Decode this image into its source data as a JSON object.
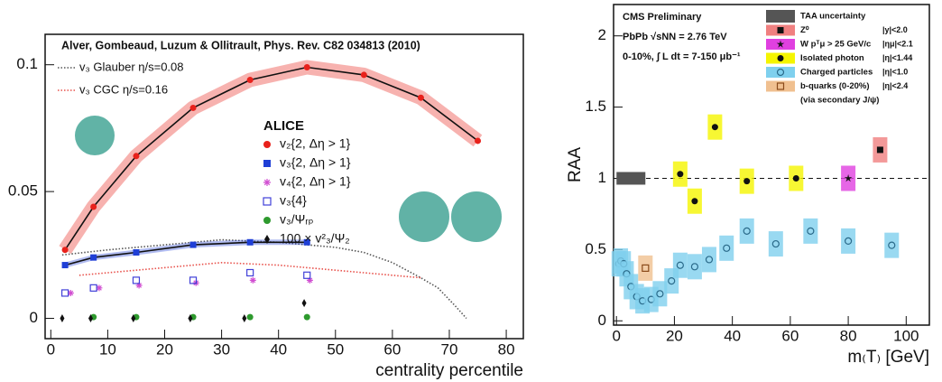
{
  "chart_data": [
    {
      "type": "scatter",
      "title": "Alver, Gombeaud, Luzum & Ollitrault, Phys. Rev. C82 034813 (2010)",
      "xlabel": "centrality percentile",
      "legend_title": "ALICE",
      "xlim": [
        -1,
        83
      ],
      "ylim": [
        -0.008,
        0.112
      ],
      "xticks": [
        0,
        10,
        20,
        30,
        40,
        50,
        60,
        70,
        80
      ],
      "yticks": [
        0,
        0.05,
        0.1
      ],
      "series": [
        {
          "name": "v₃ Glauber η/s=0.08",
          "color": "#555555",
          "marker": "none",
          "line": "dotted",
          "x": [
            2,
            10,
            20,
            30,
            40,
            50,
            55,
            60,
            65,
            68,
            71,
            73
          ],
          "values": [
            0.025,
            0.027,
            0.029,
            0.031,
            0.03,
            0.028,
            0.026,
            0.022,
            0.016,
            0.012,
            0.005,
            0
          ]
        },
        {
          "name": "v₃ CGC η/s=0.16",
          "color": "#e8504a",
          "marker": "none",
          "line": "dotted",
          "x": [
            5,
            15,
            25,
            30,
            40,
            50,
            60,
            65
          ],
          "values": [
            0.017,
            0.019,
            0.021,
            0.022,
            0.021,
            0.019,
            0.017,
            0.016
          ]
        },
        {
          "name": "v₂{2, Δη > 1}",
          "color": "#e8211b",
          "marker": "circle",
          "line": "band",
          "x": [
            2.5,
            7.5,
            15,
            25,
            35,
            45,
            55,
            65,
            75
          ],
          "values": [
            0.027,
            0.044,
            0.064,
            0.083,
            0.094,
            0.099,
            0.096,
            0.087,
            0.07
          ]
        },
        {
          "name": "v₃{2, Δη > 1}",
          "color": "#1f3fd6",
          "marker": "square",
          "line": "band",
          "x": [
            2.5,
            7.5,
            15,
            25,
            35,
            45
          ],
          "values": [
            0.021,
            0.024,
            0.026,
            0.029,
            0.03,
            0.03
          ]
        },
        {
          "name": "v₄{2, Δη > 1}",
          "color": "#d14fd1",
          "marker": "asterisk",
          "line": "none",
          "x": [
            3.5,
            8.5,
            15.5,
            25.5,
            35.5,
            45.5
          ],
          "values": [
            0.01,
            0.012,
            0.013,
            0.014,
            0.015,
            0.015
          ]
        },
        {
          "name": "v₃{4}",
          "color": "#4040d8",
          "marker": "open-square",
          "line": "none",
          "x": [
            2.5,
            7.5,
            15,
            25,
            35,
            45
          ],
          "values": [
            0.01,
            0.012,
            0.015,
            0.015,
            0.018,
            0.017
          ]
        },
        {
          "name": "v₃/Ψᵣₚ",
          "color": "#2e9a2e",
          "marker": "circle",
          "line": "none",
          "x": [
            7.5,
            15,
            25,
            35,
            45
          ],
          "values": [
            0.0005,
            0.0005,
            0.0005,
            0.0005,
            0.0005
          ]
        },
        {
          "name": "100 × v²₃/Ψ₂",
          "color": "#111111",
          "marker": "diamond",
          "line": "none",
          "x": [
            2,
            7,
            14.5,
            24.5,
            34,
            44.5
          ],
          "values": [
            0,
            0,
            0,
            0,
            0,
            0.006
          ]
        }
      ]
    },
    {
      "type": "scatter",
      "xlabel": "m₍T₎ [GeV]",
      "ylabel": "RAA",
      "annotations": [
        "CMS Preliminary",
        "PbPb √sNN = 2.76 TeV",
        "0-10%, ∫ L dt = 7-150 μb⁻¹"
      ],
      "legend_note": "(via secondary J/ψ)",
      "reference_line": 1,
      "xlim": [
        -1,
        108
      ],
      "ylim": [
        -0.03,
        2.22
      ],
      "xticks": [
        0,
        20,
        40,
        60,
        80,
        100
      ],
      "yticks": [
        0,
        0.5,
        1,
        1.5,
        2
      ],
      "series": [
        {
          "name": "TAA uncertainty",
          "cut": "",
          "color": "#555555",
          "marker": "box",
          "x": [
            5
          ],
          "values": [
            1
          ]
        },
        {
          "name": "Z⁰",
          "cut": "|y|<2.0",
          "color": "#111111",
          "band": "#f08080",
          "marker": "square",
          "x": [
            91
          ],
          "values": [
            1.2
          ]
        },
        {
          "name": "W  pᵀμ > 25 GeV/c",
          "cut": "|ημ|<2.1",
          "color": "#111111",
          "band": "#e040e0",
          "marker": "star",
          "x": [
            80
          ],
          "values": [
            1.0
          ]
        },
        {
          "name": "Isolated photon",
          "cut": "|η|<1.44",
          "color": "#111111",
          "band": "#f5f500",
          "marker": "circle",
          "x": [
            22,
            27,
            34,
            45,
            62
          ],
          "values": [
            1.03,
            0.84,
            1.36,
            0.98,
            1.0
          ]
        },
        {
          "name": "Charged particles",
          "cut": "|η|<1.0",
          "color": "#2a6a8a",
          "band": "#7fd0ee",
          "marker": "open-circle",
          "x": [
            0.8,
            1.5,
            2.5,
            3.5,
            5,
            7,
            9,
            12,
            15,
            19,
            22,
            27,
            32,
            38,
            45,
            55,
            67,
            80,
            95
          ],
          "values": [
            0.4,
            0.42,
            0.4,
            0.33,
            0.24,
            0.17,
            0.14,
            0.15,
            0.19,
            0.28,
            0.39,
            0.38,
            0.43,
            0.51,
            0.63,
            0.54,
            0.63,
            0.56,
            0.53
          ]
        },
        {
          "name": "b-quarks (0-20%)",
          "cut": "|η|<2.4",
          "color": "#8a4a1a",
          "band": "#f0c090",
          "marker": "open-square",
          "x": [
            10
          ],
          "values": [
            0.37
          ]
        }
      ]
    }
  ]
}
